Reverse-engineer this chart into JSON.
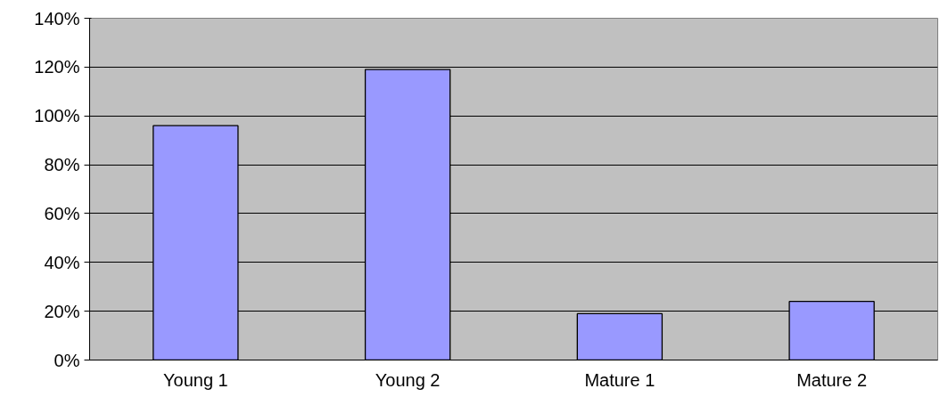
{
  "chart_data": {
    "type": "bar",
    "categories": [
      "Young 1",
      "Young 2",
      "Mature 1",
      "Mature 2"
    ],
    "values": [
      96,
      119,
      19,
      24
    ],
    "color": "#9999ff",
    "ylim": [
      0,
      140
    ],
    "yticks": [
      {
        "value": 0,
        "label": "0%"
      },
      {
        "value": 20,
        "label": "20%"
      },
      {
        "value": 40,
        "label": "40%"
      },
      {
        "value": 60,
        "label": "60%"
      },
      {
        "value": 80,
        "label": "80%"
      },
      {
        "value": 100,
        "label": "100%"
      },
      {
        "value": 120,
        "label": "120%"
      },
      {
        "value": 140,
        "label": "140%"
      }
    ],
    "grid": "y"
  }
}
